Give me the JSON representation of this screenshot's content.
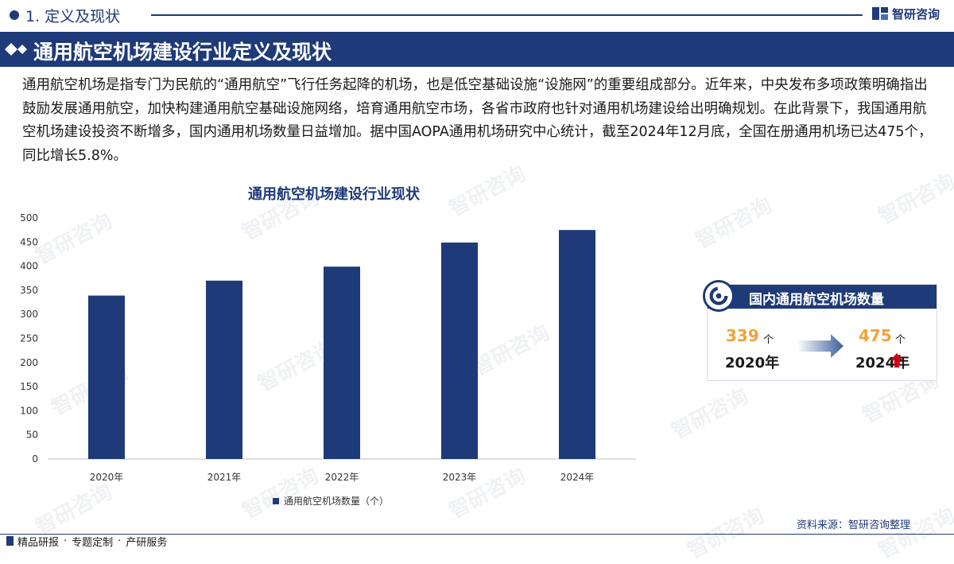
{
  "header": {
    "section_label": "1. 定义及现状",
    "brand_name": "智研咨询"
  },
  "title": "通用航空机场建设行业定义及现状",
  "intro": "通用航空机场是指专门为民航的“通用航空”飞行任务起降的机场，也是低空基础设施“设施网”的重要组成部分。近年来，中央发布多项政策明确指出鼓励发展通用航空，加快构建通用航空基础设施网络，培育通用航空市场，各省市政府也针对通用机场建设给出明确规划。在此背景下，我国通用航空机场建设投资不断增多，国内通用机场数量日益增加。据中国AOPA通用机场研究中心统计，截至2024年12月底，全国在册通用机场已达475个，同比增长5.8%。",
  "chart_data": {
    "type": "bar",
    "title": "通用航空机场建设行业现状",
    "categories": [
      "2020年",
      "2021年",
      "2022年",
      "2023年",
      "2024年"
    ],
    "series": [
      {
        "name": "通用航空机场数量（个）",
        "values": [
          339,
          370,
          399,
          449,
          475
        ]
      }
    ],
    "ylim": [
      0,
      500
    ],
    "yticks": [
      0,
      50,
      100,
      150,
      200,
      250,
      300,
      350,
      400,
      450,
      500
    ],
    "grid": false,
    "legend": "bottom-center",
    "color": "#1e3a78"
  },
  "card": {
    "title": "国内通用航空机场数量",
    "start_value": "339",
    "start_unit": "个",
    "start_year": "2020年",
    "end_value": "475",
    "end_unit": "个",
    "end_year": "2024年"
  },
  "source": "资料来源：智研咨询整理",
  "footer": {
    "items": [
      "精品研报",
      "专题定制",
      "产研服务"
    ],
    "separator": "·"
  },
  "watermark": "智研咨询",
  "colors": {
    "primary": "#1e3a78",
    "accent": "#f2a23a",
    "up_arrow": "#d0021b"
  }
}
